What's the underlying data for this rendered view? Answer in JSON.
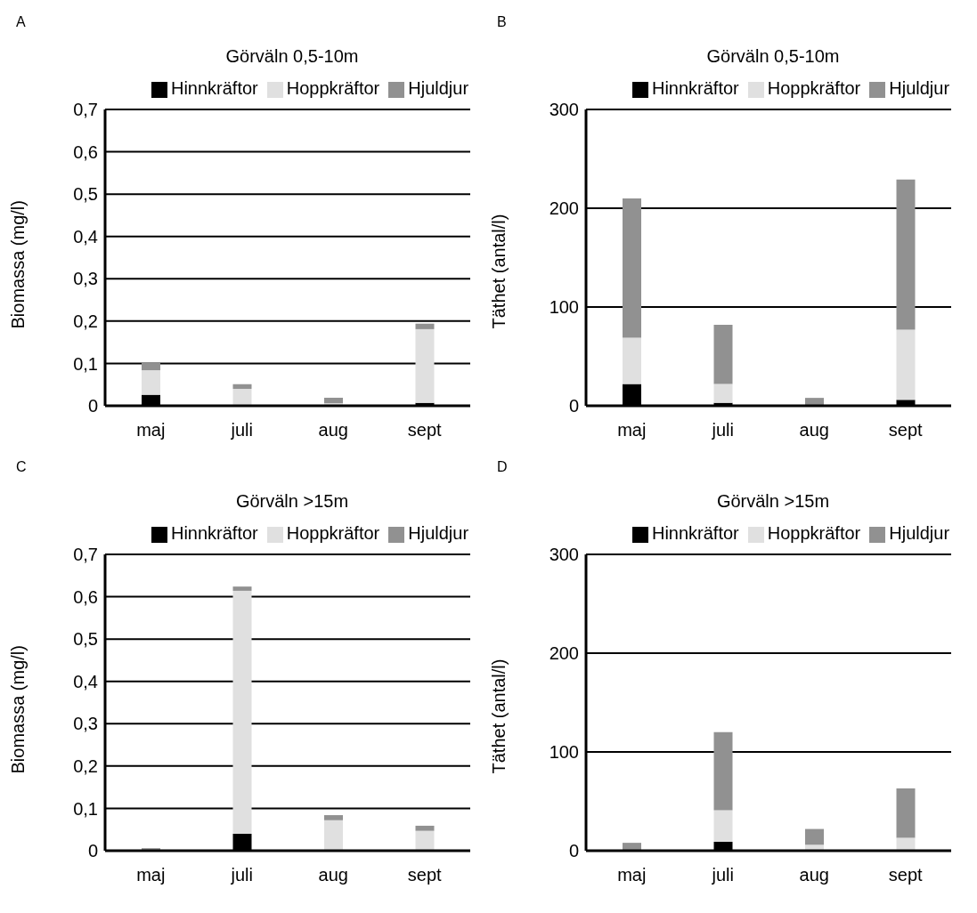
{
  "chart_data": [
    {
      "type": "bar",
      "stacked": true,
      "title": "Görväln 0,5-10m",
      "annotations": [
        "A"
      ],
      "ylabel": "Biomassa (mg/l)",
      "categories": [
        "maj",
        "juli",
        "aug",
        "sept"
      ],
      "grid": "y",
      "legend": "top",
      "ylim": [
        0,
        0.7
      ],
      "yticks": [
        0,
        {
          "value": 0.1,
          "label": "0,1"
        },
        {
          "value": 0.2,
          "label": "0,2"
        },
        {
          "value": 0.3,
          "label": "0,3"
        },
        {
          "value": 0.4,
          "label": "0,4"
        },
        {
          "value": 0.5,
          "label": "0,5"
        },
        {
          "value": 0.6,
          "label": "0,6"
        },
        {
          "value": 0.7,
          "label": "0,7"
        }
      ],
      "series": [
        {
          "name": "Hinnkräftor",
          "color": "#000000",
          "values": [
            0.026,
            0.002,
            0,
            0.007
          ]
        },
        {
          "name": "Hoppkräftor",
          "color": "#e0e0e0",
          "values": [
            0.058,
            0.038,
            0.006,
            0.174
          ]
        },
        {
          "name": "Hjuldjur",
          "color": "#919191",
          "values": [
            0.018,
            0.011,
            0.013,
            0.013
          ]
        }
      ]
    },
    {
      "type": "bar",
      "stacked": true,
      "title": "Görväln 0,5-10m",
      "annotations": [
        "B"
      ],
      "ylabel": "Täthet (antal/l)",
      "categories": [
        "maj",
        "juli",
        "aug",
        "sept"
      ],
      "grid": "y",
      "legend": "top",
      "ylim": [
        0,
        300
      ],
      "yticks": [
        0,
        100,
        200,
        300
      ],
      "series": [
        {
          "name": "Hinnkräftor",
          "color": "#000000",
          "values": [
            22,
            3,
            0,
            6
          ]
        },
        {
          "name": "Hoppkräftor",
          "color": "#e0e0e0",
          "values": [
            47,
            19,
            0,
            71
          ]
        },
        {
          "name": "Hjuldjur",
          "color": "#919191",
          "values": [
            141,
            60,
            8,
            152
          ]
        }
      ]
    },
    {
      "type": "bar",
      "stacked": true,
      "title": "Görväln >15m",
      "annotations": [
        "C"
      ],
      "ylabel": "Biomassa (mg/l)",
      "categories": [
        "maj",
        "juli",
        "aug",
        "sept"
      ],
      "grid": "y",
      "legend": "top",
      "ylim": [
        0,
        0.7
      ],
      "yticks": [
        0,
        {
          "value": 0.1,
          "label": "0,1"
        },
        {
          "value": 0.2,
          "label": "0,2"
        },
        {
          "value": 0.3,
          "label": "0,3"
        },
        {
          "value": 0.4,
          "label": "0,4"
        },
        {
          "value": 0.5,
          "label": "0,5"
        },
        {
          "value": 0.6,
          "label": "0,6"
        },
        {
          "value": 0.7,
          "label": "0,7"
        }
      ],
      "series": [
        {
          "name": "Hinnkräftor",
          "color": "#000000",
          "values": [
            0,
            0.04,
            0,
            0
          ]
        },
        {
          "name": "Hoppkräftor",
          "color": "#e0e0e0",
          "values": [
            0,
            0.574,
            0.072,
            0.047
          ]
        },
        {
          "name": "Hjuldjur",
          "color": "#919191",
          "values": [
            0.006,
            0.01,
            0.012,
            0.012
          ]
        }
      ]
    },
    {
      "type": "bar",
      "stacked": true,
      "title": "Görväln >15m",
      "annotations": [
        "D"
      ],
      "ylabel": "Täthet (antal/l)",
      "categories": [
        "maj",
        "juli",
        "aug",
        "sept"
      ],
      "grid": "y",
      "legend": "top",
      "ylim": [
        0,
        300
      ],
      "yticks": [
        0,
        100,
        200,
        300
      ],
      "series": [
        {
          "name": "Hinnkräftor",
          "color": "#000000",
          "values": [
            0,
            9,
            0,
            0
          ]
        },
        {
          "name": "Hoppkräftor",
          "color": "#e0e0e0",
          "values": [
            0,
            32,
            6,
            13
          ]
        },
        {
          "name": "Hjuldjur",
          "color": "#919191",
          "values": [
            8,
            79,
            16,
            50
          ]
        }
      ]
    }
  ]
}
